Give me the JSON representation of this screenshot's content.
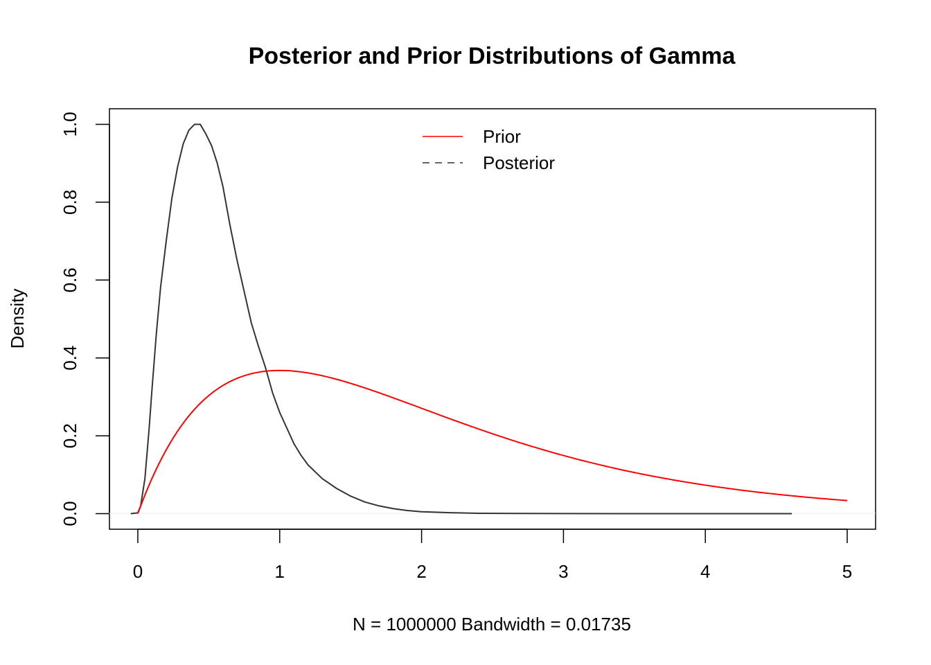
{
  "chart_data": {
    "type": "line",
    "title": "Posterior and Prior Distributions of Gamma",
    "xlabel": "N = 1000000   Bandwidth = 0.01735",
    "ylabel": "Density",
    "xlim": [
      -0.2,
      5.2
    ],
    "ylim": [
      -0.04,
      1.04
    ],
    "x_ticks": [
      0,
      1,
      2,
      3,
      4,
      5
    ],
    "y_ticks": [
      0.0,
      0.2,
      0.4,
      0.6,
      0.8,
      1.0
    ],
    "x_tick_labels": [
      "0",
      "1",
      "2",
      "3",
      "4",
      "5"
    ],
    "y_tick_labels": [
      "0.0",
      "0.2",
      "0.4",
      "0.6",
      "0.8",
      "1.0"
    ],
    "grid": false,
    "legend": {
      "position": "top-center",
      "entries": [
        {
          "label": "Prior",
          "color": "#ff0000",
          "style": "solid"
        },
        {
          "label": "Posterior",
          "color": "#333333",
          "style": "dashed"
        }
      ]
    },
    "series": [
      {
        "name": "Posterior",
        "color": "#333333",
        "style": "solid",
        "points": [
          [
            -0.05,
            0.0
          ],
          [
            0.0,
            0.002
          ],
          [
            0.02,
            0.02
          ],
          [
            0.05,
            0.09
          ],
          [
            0.08,
            0.22
          ],
          [
            0.1,
            0.32
          ],
          [
            0.13,
            0.46
          ],
          [
            0.16,
            0.58
          ],
          [
            0.2,
            0.7
          ],
          [
            0.24,
            0.81
          ],
          [
            0.28,
            0.89
          ],
          [
            0.32,
            0.95
          ],
          [
            0.36,
            0.985
          ],
          [
            0.4,
            1.0
          ],
          [
            0.44,
            1.0
          ],
          [
            0.48,
            0.975
          ],
          [
            0.52,
            0.945
          ],
          [
            0.56,
            0.9
          ],
          [
            0.6,
            0.84
          ],
          [
            0.65,
            0.74
          ],
          [
            0.7,
            0.65
          ],
          [
            0.75,
            0.57
          ],
          [
            0.8,
            0.49
          ],
          [
            0.85,
            0.43
          ],
          [
            0.9,
            0.375
          ],
          [
            0.95,
            0.31
          ],
          [
            1.0,
            0.26
          ],
          [
            1.05,
            0.22
          ],
          [
            1.1,
            0.18
          ],
          [
            1.15,
            0.15
          ],
          [
            1.2,
            0.125
          ],
          [
            1.3,
            0.09
          ],
          [
            1.4,
            0.065
          ],
          [
            1.5,
            0.045
          ],
          [
            1.6,
            0.03
          ],
          [
            1.7,
            0.02
          ],
          [
            1.8,
            0.013
          ],
          [
            1.9,
            0.008
          ],
          [
            2.0,
            0.005
          ],
          [
            2.2,
            0.0025
          ],
          [
            2.4,
            0.001
          ],
          [
            2.7,
            0.0004
          ],
          [
            3.0,
            0.0002
          ],
          [
            3.6,
            0.0001
          ],
          [
            4.0,
            0.0
          ],
          [
            4.61,
            0.0
          ]
        ]
      },
      {
        "name": "Prior",
        "color": "#ff0000",
        "style": "solid",
        "function": "x*exp(-x)",
        "x_range": [
          0,
          5
        ]
      }
    ]
  }
}
